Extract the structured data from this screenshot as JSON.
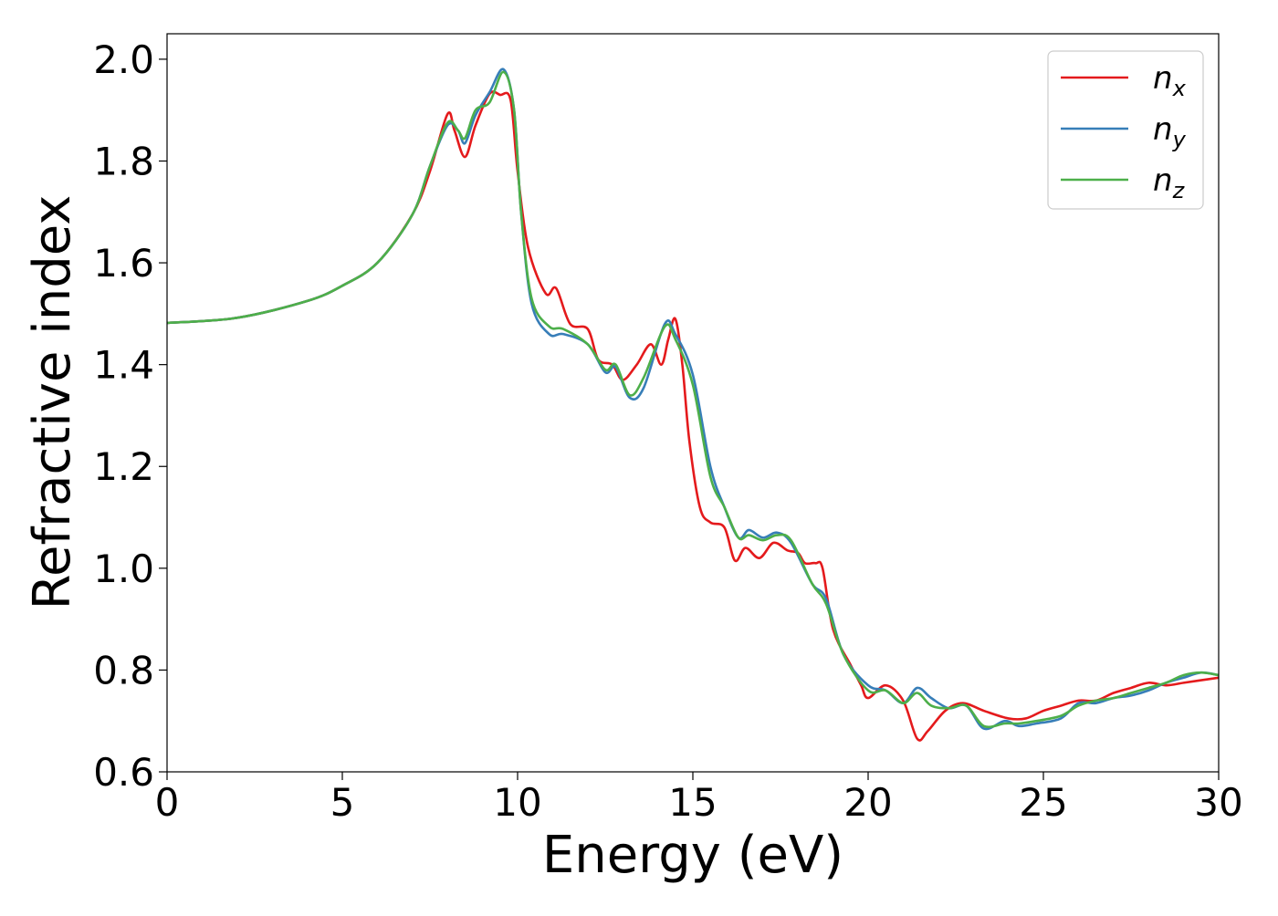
{
  "chart_data": {
    "type": "line",
    "title": "",
    "xlabel": "Energy (eV)",
    "ylabel": "Refractive index",
    "xlim": [
      0,
      30
    ],
    "ylim": [
      0.6,
      2.05
    ],
    "xticks": [
      0,
      5,
      10,
      15,
      20,
      25,
      30
    ],
    "yticks": [
      0.6,
      0.8,
      1.0,
      1.2,
      1.4,
      1.6,
      1.8,
      2.0
    ],
    "xtick_labels": [
      "0",
      "5",
      "10",
      "15",
      "20",
      "25",
      "30"
    ],
    "ytick_labels": [
      "0.6",
      "0.8",
      "1.0",
      "1.2",
      "1.4",
      "1.6",
      "1.8",
      "2.0"
    ],
    "grid": false,
    "legend_position": "top-right",
    "series": [
      {
        "name": "n",
        "subscript": "x",
        "color": "#e41a1c",
        "points": [
          [
            0,
            1.482
          ],
          [
            2,
            1.492
          ],
          [
            4,
            1.525
          ],
          [
            5,
            1.555
          ],
          [
            6,
            1.6
          ],
          [
            7,
            1.695
          ],
          [
            7.5,
            1.78
          ],
          [
            8,
            1.892
          ],
          [
            8.2,
            1.86
          ],
          [
            8.5,
            1.808
          ],
          [
            8.8,
            1.87
          ],
          [
            9.2,
            1.932
          ],
          [
            9.5,
            1.93
          ],
          [
            9.8,
            1.92
          ],
          [
            10,
            1.78
          ],
          [
            10.3,
            1.63
          ],
          [
            10.8,
            1.54
          ],
          [
            11.1,
            1.55
          ],
          [
            11.5,
            1.48
          ],
          [
            12,
            1.47
          ],
          [
            12.3,
            1.41
          ],
          [
            12.7,
            1.4
          ],
          [
            13,
            1.37
          ],
          [
            13.4,
            1.4
          ],
          [
            13.8,
            1.44
          ],
          [
            14.1,
            1.4
          ],
          [
            14.3,
            1.45
          ],
          [
            14.5,
            1.49
          ],
          [
            14.7,
            1.4
          ],
          [
            14.9,
            1.25
          ],
          [
            15.2,
            1.12
          ],
          [
            15.5,
            1.09
          ],
          [
            15.9,
            1.08
          ],
          [
            16.2,
            1.015
          ],
          [
            16.5,
            1.04
          ],
          [
            16.9,
            1.02
          ],
          [
            17.3,
            1.05
          ],
          [
            17.7,
            1.035
          ],
          [
            18,
            1.03
          ],
          [
            18.2,
            1.01
          ],
          [
            18.5,
            1.01
          ],
          [
            18.7,
            1.0
          ],
          [
            19,
            0.88
          ],
          [
            19.5,
            0.81
          ],
          [
            19.8,
            0.77
          ],
          [
            20,
            0.745
          ],
          [
            20.5,
            0.77
          ],
          [
            21,
            0.74
          ],
          [
            21.4,
            0.665
          ],
          [
            21.7,
            0.68
          ],
          [
            22.2,
            0.72
          ],
          [
            22.7,
            0.735
          ],
          [
            23.3,
            0.72
          ],
          [
            24,
            0.705
          ],
          [
            24.5,
            0.705
          ],
          [
            25,
            0.72
          ],
          [
            25.5,
            0.73
          ],
          [
            26,
            0.74
          ],
          [
            26.5,
            0.74
          ],
          [
            27,
            0.755
          ],
          [
            27.5,
            0.765
          ],
          [
            28,
            0.775
          ],
          [
            28.5,
            0.77
          ],
          [
            29,
            0.775
          ],
          [
            29.5,
            0.78
          ],
          [
            30,
            0.785
          ]
        ]
      },
      {
        "name": "n",
        "subscript": "y",
        "color": "#377eb8",
        "points": [
          [
            0,
            1.482
          ],
          [
            2,
            1.492
          ],
          [
            4,
            1.525
          ],
          [
            5,
            1.555
          ],
          [
            6,
            1.6
          ],
          [
            7,
            1.695
          ],
          [
            7.5,
            1.79
          ],
          [
            8,
            1.87
          ],
          [
            8.3,
            1.86
          ],
          [
            8.5,
            1.835
          ],
          [
            8.8,
            1.89
          ],
          [
            9.2,
            1.935
          ],
          [
            9.6,
            1.98
          ],
          [
            9.9,
            1.9
          ],
          [
            10.1,
            1.7
          ],
          [
            10.4,
            1.52
          ],
          [
            10.9,
            1.46
          ],
          [
            11.3,
            1.46
          ],
          [
            12,
            1.44
          ],
          [
            12.5,
            1.385
          ],
          [
            12.8,
            1.395
          ],
          [
            13.2,
            1.335
          ],
          [
            13.6,
            1.355
          ],
          [
            14.2,
            1.48
          ],
          [
            14.5,
            1.46
          ],
          [
            15,
            1.38
          ],
          [
            15.5,
            1.2
          ],
          [
            15.9,
            1.12
          ],
          [
            16.3,
            1.06
          ],
          [
            16.6,
            1.075
          ],
          [
            17,
            1.06
          ],
          [
            17.4,
            1.07
          ],
          [
            17.8,
            1.05
          ],
          [
            18.4,
            0.97
          ],
          [
            18.8,
            0.94
          ],
          [
            19.3,
            0.83
          ],
          [
            20,
            0.77
          ],
          [
            20.5,
            0.76
          ],
          [
            21,
            0.735
          ],
          [
            21.4,
            0.765
          ],
          [
            21.8,
            0.745
          ],
          [
            22.3,
            0.725
          ],
          [
            22.8,
            0.73
          ],
          [
            23.3,
            0.685
          ],
          [
            23.9,
            0.7
          ],
          [
            24.3,
            0.69
          ],
          [
            24.8,
            0.695
          ],
          [
            25.5,
            0.705
          ],
          [
            26,
            0.735
          ],
          [
            26.5,
            0.735
          ],
          [
            27,
            0.745
          ],
          [
            27.5,
            0.75
          ],
          [
            28,
            0.76
          ],
          [
            28.5,
            0.775
          ],
          [
            29,
            0.785
          ],
          [
            29.5,
            0.795
          ],
          [
            30,
            0.79
          ]
        ]
      },
      {
        "name": "n",
        "subscript": "z",
        "color": "#4daf4a",
        "points": [
          [
            0,
            1.482
          ],
          [
            2,
            1.492
          ],
          [
            4,
            1.525
          ],
          [
            5,
            1.555
          ],
          [
            6,
            1.6
          ],
          [
            7,
            1.695
          ],
          [
            7.5,
            1.79
          ],
          [
            8,
            1.875
          ],
          [
            8.3,
            1.86
          ],
          [
            8.5,
            1.845
          ],
          [
            8.8,
            1.9
          ],
          [
            9.2,
            1.915
          ],
          [
            9.6,
            1.975
          ],
          [
            9.9,
            1.9
          ],
          [
            10.1,
            1.7
          ],
          [
            10.4,
            1.53
          ],
          [
            10.9,
            1.475
          ],
          [
            11.3,
            1.47
          ],
          [
            12,
            1.44
          ],
          [
            12.5,
            1.39
          ],
          [
            12.8,
            1.4
          ],
          [
            13.2,
            1.34
          ],
          [
            13.6,
            1.375
          ],
          [
            14.2,
            1.475
          ],
          [
            14.5,
            1.45
          ],
          [
            15,
            1.36
          ],
          [
            15.5,
            1.18
          ],
          [
            15.9,
            1.12
          ],
          [
            16.3,
            1.06
          ],
          [
            16.6,
            1.065
          ],
          [
            17,
            1.055
          ],
          [
            17.4,
            1.065
          ],
          [
            17.8,
            1.055
          ],
          [
            18.4,
            0.97
          ],
          [
            18.8,
            0.93
          ],
          [
            19.3,
            0.83
          ],
          [
            20,
            0.76
          ],
          [
            20.5,
            0.76
          ],
          [
            21,
            0.735
          ],
          [
            21.4,
            0.755
          ],
          [
            21.8,
            0.73
          ],
          [
            22.3,
            0.725
          ],
          [
            22.8,
            0.73
          ],
          [
            23.3,
            0.69
          ],
          [
            23.9,
            0.695
          ],
          [
            24.3,
            0.695
          ],
          [
            24.8,
            0.7
          ],
          [
            25.5,
            0.71
          ],
          [
            26,
            0.73
          ],
          [
            26.5,
            0.74
          ],
          [
            27,
            0.745
          ],
          [
            27.5,
            0.755
          ],
          [
            28,
            0.765
          ],
          [
            28.5,
            0.775
          ],
          [
            29,
            0.79
          ],
          [
            29.5,
            0.795
          ],
          [
            30,
            0.79
          ]
        ]
      }
    ]
  }
}
